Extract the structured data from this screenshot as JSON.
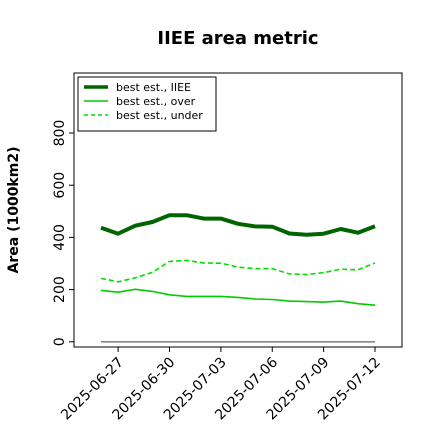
{
  "chart_data": {
    "type": "line",
    "title": "IIEE area metric",
    "ylabel": "Area (1000km2)",
    "xlabel": "",
    "x": [
      "2025-06-26",
      "2025-06-27",
      "2025-06-28",
      "2025-06-29",
      "2025-06-30",
      "2025-07-01",
      "2025-07-02",
      "2025-07-03",
      "2025-07-04",
      "2025-07-05",
      "2025-07-06",
      "2025-07-07",
      "2025-07-08",
      "2025-07-09",
      "2025-07-10",
      "2025-07-11",
      "2025-07-12"
    ],
    "xticks": [
      "2025-06-27",
      "2025-06-30",
      "2025-07-03",
      "2025-07-06",
      "2025-07-09",
      "2025-07-12"
    ],
    "yticks": [
      0,
      200,
      400,
      600,
      800
    ],
    "ylim": [
      -20,
      1030
    ],
    "grid": false,
    "legend_position": "top-left",
    "series": [
      {
        "name": "best est., IIEE",
        "color": "#006400",
        "style": "solid",
        "width": 4,
        "values": [
          437,
          414,
          445,
          459,
          485,
          485,
          472,
          472,
          452,
          442,
          441,
          415,
          410,
          414,
          432,
          418,
          443
        ]
      },
      {
        "name": "best est., over",
        "color": "#00cc00",
        "style": "solid",
        "width": 1.6,
        "values": [
          197,
          190,
          201,
          193,
          180,
          174,
          174,
          174,
          170,
          164,
          162,
          156,
          154,
          152,
          156,
          146,
          140
        ]
      },
      {
        "name": "best est., under",
        "color": "#00dd00",
        "style": "dashed",
        "width": 1.6,
        "values": [
          243,
          230,
          245,
          266,
          308,
          312,
          302,
          301,
          286,
          280,
          280,
          260,
          258,
          265,
          278,
          276,
          302
        ]
      },
      {
        "name": "",
        "color": "#888888",
        "style": "solid",
        "width": 1.6,
        "legend": false,
        "values": [
          0,
          0,
          0,
          0,
          0,
          0,
          0,
          0,
          0,
          0,
          0,
          0,
          0,
          0,
          0,
          0,
          0
        ]
      }
    ]
  }
}
